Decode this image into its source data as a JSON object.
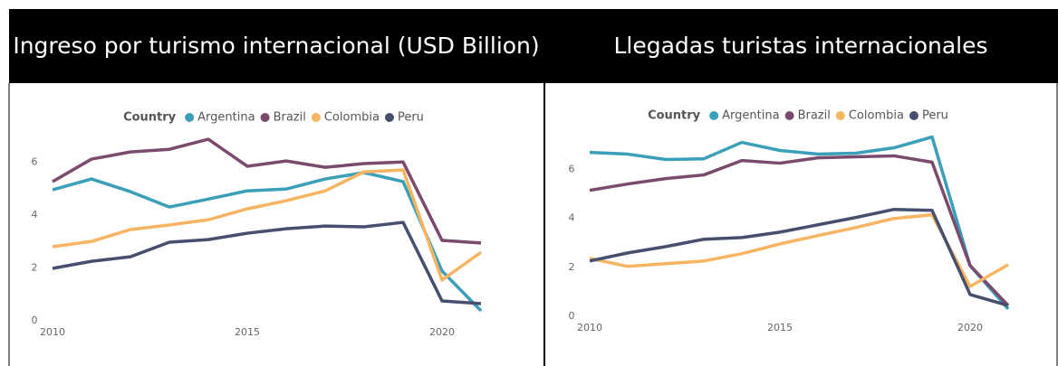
{
  "chart_data": [
    {
      "type": "line",
      "title": "Ingreso por turismo internacional (USD Billion)",
      "legend_title": "Country",
      "x": [
        2010,
        2011,
        2012,
        2013,
        2014,
        2015,
        2016,
        2017,
        2018,
        2019,
        2020,
        2021
      ],
      "xlim": [
        2010,
        2021
      ],
      "xticks": [
        2010,
        2015,
        2020
      ],
      "ylim": [
        0,
        7
      ],
      "yticks": [
        0,
        2,
        4,
        6
      ],
      "series": [
        {
          "name": "Argentina",
          "color": "#3a9fb8",
          "values": [
            4.95,
            5.36,
            4.88,
            4.3,
            4.6,
            4.91,
            4.98,
            5.36,
            5.6,
            5.26,
            1.88,
            0.38
          ]
        },
        {
          "name": "Brazil",
          "color": "#7b4b6e",
          "values": [
            5.26,
            6.11,
            6.38,
            6.48,
            6.86,
            5.84,
            6.04,
            5.8,
            5.94,
            6.0,
            3.04,
            2.94
          ]
        },
        {
          "name": "Colombia",
          "color": "#f7b462",
          "values": [
            2.8,
            3.0,
            3.45,
            3.62,
            3.82,
            4.23,
            4.54,
            4.91,
            5.63,
            5.7,
            1.54,
            2.59
          ]
        },
        {
          "name": "Peru",
          "color": "#474f6e",
          "values": [
            1.98,
            2.25,
            2.42,
            2.97,
            3.07,
            3.31,
            3.48,
            3.58,
            3.55,
            3.72,
            0.75,
            0.65
          ]
        }
      ]
    },
    {
      "type": "line",
      "title": "Llegadas turistas internacionales",
      "legend_title": "Country",
      "x": [
        2010,
        2011,
        2012,
        2013,
        2014,
        2015,
        2016,
        2017,
        2018,
        2019,
        2020,
        2021
      ],
      "xlim": [
        2010,
        2021
      ],
      "xticks": [
        2010,
        2015,
        2020
      ],
      "ylim": [
        0,
        7.5
      ],
      "yticks": [
        0,
        2,
        4,
        6
      ],
      "series": [
        {
          "name": "Argentina",
          "color": "#3a9fb8",
          "values": [
            6.7,
            6.63,
            6.41,
            6.44,
            7.11,
            6.78,
            6.63,
            6.67,
            6.89,
            7.33,
            2.07,
            0.3
          ]
        },
        {
          "name": "Brazil",
          "color": "#7b4b6e",
          "values": [
            5.15,
            5.41,
            5.63,
            5.78,
            6.37,
            6.26,
            6.48,
            6.52,
            6.56,
            6.3,
            2.07,
            0.44
          ]
        },
        {
          "name": "Colombia",
          "color": "#f7b462",
          "values": [
            2.37,
            2.04,
            2.15,
            2.26,
            2.56,
            2.96,
            3.3,
            3.63,
            4.0,
            4.15,
            1.22,
            2.11
          ]
        },
        {
          "name": "Peru",
          "color": "#474f6e",
          "values": [
            2.26,
            2.59,
            2.85,
            3.15,
            3.22,
            3.44,
            3.74,
            4.04,
            4.37,
            4.33,
            0.89,
            0.44
          ]
        }
      ]
    }
  ]
}
